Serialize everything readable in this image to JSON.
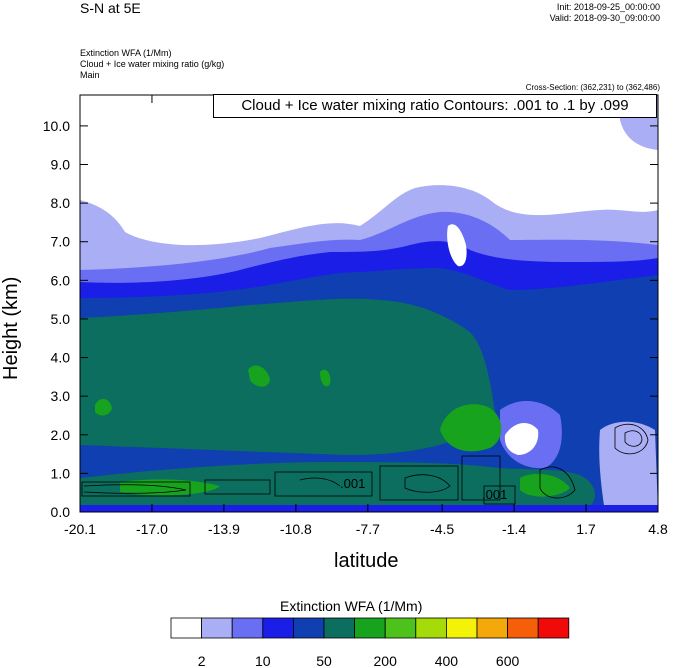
{
  "header": {
    "title": "S-N at 5E",
    "init": "Init: 2018-09-25_00:00:00",
    "valid": "Valid: 2018-09-30_09:00:00",
    "fields": [
      "Extinction WFA   (1/Mm)",
      "Cloud + Ice water mixing ratio   (g/kg)",
      "Main"
    ],
    "cross_section": "Cross-Section: (362,231) to (362,486)",
    "contour_info": "Cloud + Ice water mixing ratio Contours: .001 to .1 by .099"
  },
  "colorbar": {
    "title": "Extinction WFA  (1/Mm)",
    "colors": [
      "#ffffff",
      "#a9aef5",
      "#6a6ef2",
      "#1a1ee6",
      "#0f3fb0",
      "#0b6e5e",
      "#17a31e",
      "#4cc21a",
      "#a6db0a",
      "#f5f20a",
      "#f5a80a",
      "#f55f0a",
      "#f00a0a"
    ],
    "labels": [
      "2",
      "10",
      "50",
      "200",
      "400",
      "600"
    ]
  },
  "chart_data": {
    "type": "heatmap",
    "title": "S-N at 5E",
    "xlabel": "latitude",
    "ylabel": "Height (km)",
    "xlim": [
      -20.1,
      4.8
    ],
    "ylim": [
      0.0,
      10.8
    ],
    "x_ticks": [
      "-20.1",
      "-17.0",
      "-13.9",
      "-10.8",
      "-7.7",
      "-4.5",
      "-1.4",
      "1.7",
      "4.8"
    ],
    "y_ticks": [
      "0.0",
      "1.0",
      "2.0",
      "3.0",
      "4.0",
      "5.0",
      "6.0",
      "7.0",
      "8.0",
      "9.0",
      "10.0"
    ],
    "contour_labels": [
      ".001",
      ".001"
    ]
  }
}
